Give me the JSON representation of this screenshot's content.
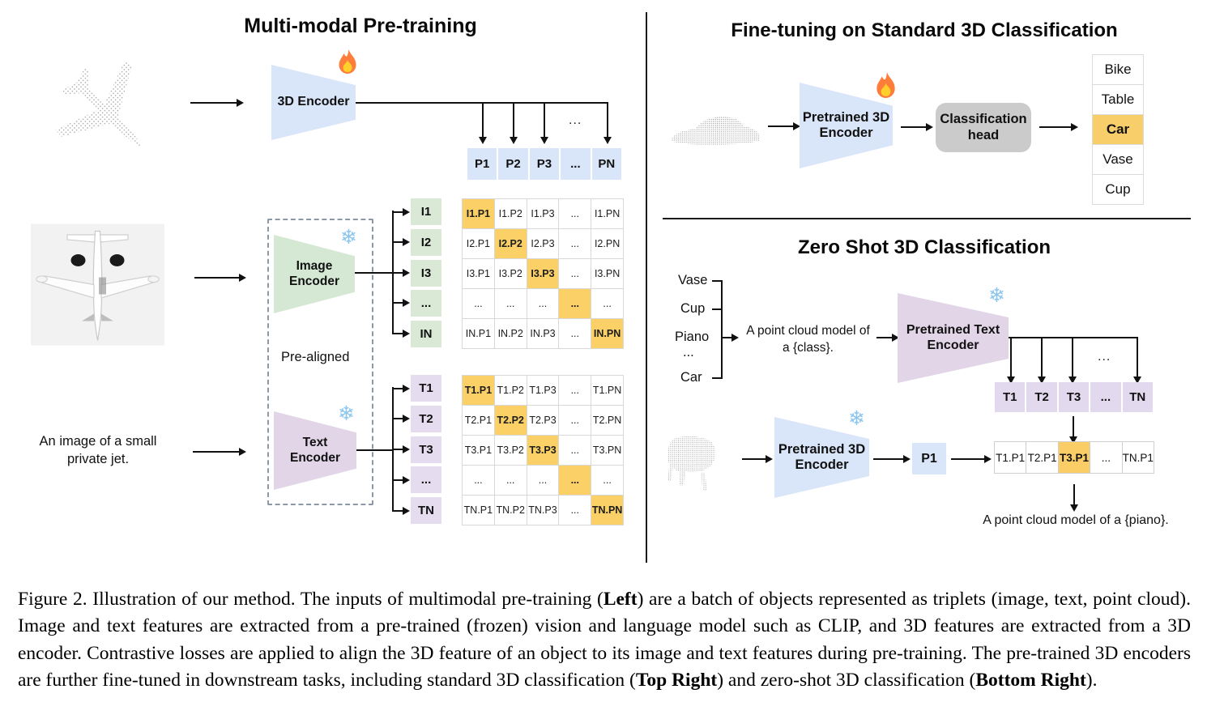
{
  "colors": {
    "encoder_blue": "#d9e5f8",
    "encoder_green": "#d5e8d4",
    "encoder_purple": "#e1d5e7",
    "highlight_orange": "#fbd067",
    "head_gray": "#cbcbcb"
  },
  "icons": {
    "snowflake_char": "❄",
    "fire": "flame-icon",
    "airplane_point_cloud": "airplane-point-cloud",
    "car_point_cloud": "car-point-cloud",
    "piano_point_cloud": "piano-point-cloud",
    "airplane_photo": "airplane-top-view-photo"
  },
  "left": {
    "title": "Multi-modal Pre-training",
    "encoder_3d_label": "3D Encoder",
    "image_encoder": {
      "line1": "Image",
      "line2": "Encoder"
    },
    "text_encoder": {
      "line1": "Text",
      "line2": "Encoder"
    },
    "prealigned": "Pre-aligned",
    "input_text": {
      "line1": "An image of a small",
      "line2": "private jet."
    },
    "dots": "...",
    "p_row": [
      "P1",
      "P2",
      "P3",
      "...",
      "PN"
    ],
    "i_col": [
      "I1",
      "I2",
      "I3",
      "...",
      "IN"
    ],
    "t_col": [
      "T1",
      "T2",
      "T3",
      "...",
      "TN"
    ],
    "i_matrix": [
      [
        "I1.P1",
        "I1.P2",
        "I1.P3",
        "...",
        "I1.PN"
      ],
      [
        "I2.P1",
        "I2.P2",
        "I2.P3",
        "...",
        "I2.PN"
      ],
      [
        "I3.P1",
        "I3.P2",
        "I3.P3",
        "...",
        "I3.PN"
      ],
      [
        "...",
        "...",
        "...",
        "...",
        "..."
      ],
      [
        "IN.P1",
        "IN.P2",
        "IN.P3",
        "...",
        "IN.PN"
      ]
    ],
    "t_matrix": [
      [
        "T1.P1",
        "T1.P2",
        "T1.P3",
        "...",
        "T1.PN"
      ],
      [
        "T2.P1",
        "T2.P2",
        "T2.P3",
        "...",
        "T2.PN"
      ],
      [
        "T3.P1",
        "T3.P2",
        "T3.P3",
        "...",
        "T3.PN"
      ],
      [
        "...",
        "...",
        "...",
        "...",
        "..."
      ],
      [
        "TN.P1",
        "TN.P2",
        "TN.P3",
        "...",
        "TN.PN"
      ]
    ]
  },
  "finetune": {
    "title": "Fine-tuning on Standard 3D Classification",
    "encoder": {
      "line1": "Pretrained 3D",
      "line2": "Encoder"
    },
    "head": {
      "line1": "Classification",
      "line2": "head"
    },
    "classes": [
      "Bike",
      "Table",
      "Car",
      "Vase",
      "Cup"
    ],
    "highlight_index": 2
  },
  "zeroshot": {
    "title": "Zero Shot 3D Classification",
    "classes": {
      "c0": "Vase",
      "c1": "Cup",
      "c2": "Piano",
      "c3": "...",
      "c4": "Car"
    },
    "prompt": {
      "line1": "A point cloud model of",
      "line2": "a {class}."
    },
    "text_encoder": {
      "line1": "Pretrained Text",
      "line2": "Encoder"
    },
    "encoder_3d": {
      "line1": "Pretrained 3D",
      "line2": "Encoder"
    },
    "dots": "...",
    "t_row": [
      "T1",
      "T2",
      "T3",
      "...",
      "TN"
    ],
    "p1": "P1",
    "result_row": [
      "T1.P1",
      "T2.P1",
      "T3.P1",
      "...",
      "TN.P1"
    ],
    "result_highlight_index": 2,
    "output_text": "A point cloud model of a {piano}."
  },
  "caption": {
    "part1": "Figure 2. Illustration of our method. The inputs of multimodal pre-training (",
    "bold1": "Left",
    "part2": ") are a batch of objects represented as triplets (image, text, point cloud). Image and text features are extracted from a pre-trained (frozen) vision and language model such as CLIP, and 3D features are extracted from a 3D encoder. Contrastive losses are applied to align the 3D feature of an object to its image and text features during pre-training. The pre-trained 3D encoders are further fine-tuned in downstream tasks, including standard 3D classification (",
    "bold2": "Top Right",
    "part3": ") and zero-shot 3D classification (",
    "bold3": "Bottom Right",
    "part4": ")."
  }
}
